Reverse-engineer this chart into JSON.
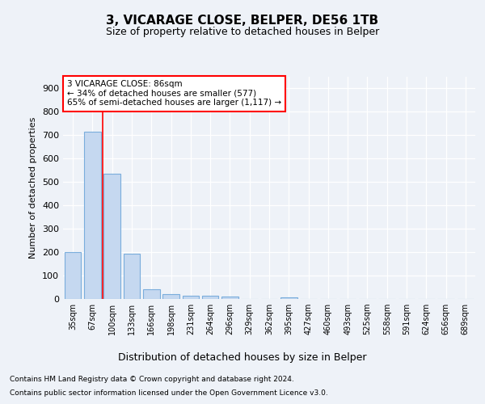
{
  "title1": "3, VICARAGE CLOSE, BELPER, DE56 1TB",
  "title2": "Size of property relative to detached houses in Belper",
  "xlabel": "Distribution of detached houses by size in Belper",
  "ylabel": "Number of detached properties",
  "categories": [
    "35sqm",
    "67sqm",
    "100sqm",
    "133sqm",
    "166sqm",
    "198sqm",
    "231sqm",
    "264sqm",
    "296sqm",
    "329sqm",
    "362sqm",
    "395sqm",
    "427sqm",
    "460sqm",
    "493sqm",
    "525sqm",
    "558sqm",
    "591sqm",
    "624sqm",
    "656sqm",
    "689sqm"
  ],
  "values": [
    200,
    714,
    537,
    193,
    42,
    20,
    14,
    13,
    9,
    0,
    0,
    8,
    0,
    0,
    0,
    0,
    0,
    0,
    0,
    0,
    0
  ],
  "bar_color": "#c5d8f0",
  "bar_edgecolor": "#7aaddc",
  "vline_color": "red",
  "annotation_text": "3 VICARAGE CLOSE: 86sqm\n← 34% of detached houses are smaller (577)\n65% of semi-detached houses are larger (1,117) →",
  "annotation_box_color": "white",
  "annotation_box_edgecolor": "red",
  "ylim": [
    0,
    950
  ],
  "yticks": [
    0,
    100,
    200,
    300,
    400,
    500,
    600,
    700,
    800,
    900
  ],
  "footer1": "Contains HM Land Registry data © Crown copyright and database right 2024.",
  "footer2": "Contains public sector information licensed under the Open Government Licence v3.0.",
  "bg_color": "#eef2f8",
  "plot_bg_color": "#eef2f8"
}
